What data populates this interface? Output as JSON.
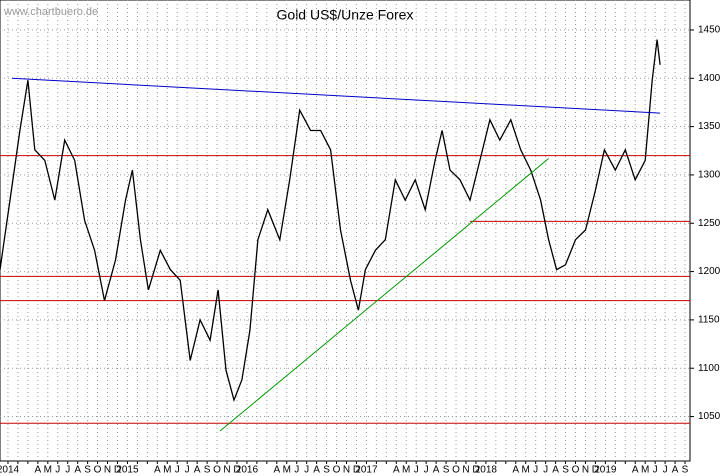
{
  "chart_data": {
    "type": "line",
    "title": "Gold US$/Unze Forex",
    "watermark": "www.chartbuero.de",
    "xlim": [
      -0.8,
      68.5
    ],
    "ylim": [
      1004,
      1481
    ],
    "yticks": [
      1050,
      1100,
      1150,
      1200,
      1250,
      1300,
      1350,
      1400,
      1450
    ],
    "xticks": [
      {
        "value": 0,
        "label": "2014"
      },
      {
        "value": 1,
        "label": null
      },
      {
        "value": 2,
        "label": null
      },
      {
        "value": 3,
        "label": "A"
      },
      {
        "value": 4,
        "label": "M"
      },
      {
        "value": 5,
        "label": "J"
      },
      {
        "value": 6,
        "label": "J"
      },
      {
        "value": 7,
        "label": "A"
      },
      {
        "value": 8,
        "label": "S"
      },
      {
        "value": 9,
        "label": "O"
      },
      {
        "value": 10,
        "label": "N"
      },
      {
        "value": 11,
        "label": "D"
      },
      {
        "value": 12,
        "label": "2015"
      },
      {
        "value": 13,
        "label": null
      },
      {
        "value": 14,
        "label": null
      },
      {
        "value": 15,
        "label": "A"
      },
      {
        "value": 16,
        "label": "M"
      },
      {
        "value": 17,
        "label": "J"
      },
      {
        "value": 18,
        "label": "J"
      },
      {
        "value": 19,
        "label": "A"
      },
      {
        "value": 20,
        "label": "S"
      },
      {
        "value": 21,
        "label": "O"
      },
      {
        "value": 22,
        "label": "N"
      },
      {
        "value": 23,
        "label": "D"
      },
      {
        "value": 24,
        "label": "2016"
      },
      {
        "value": 25,
        "label": null
      },
      {
        "value": 26,
        "label": null
      },
      {
        "value": 27,
        "label": "A"
      },
      {
        "value": 28,
        "label": "M"
      },
      {
        "value": 29,
        "label": "J"
      },
      {
        "value": 30,
        "label": "J"
      },
      {
        "value": 31,
        "label": "A"
      },
      {
        "value": 32,
        "label": "S"
      },
      {
        "value": 33,
        "label": "O"
      },
      {
        "value": 34,
        "label": "N"
      },
      {
        "value": 35,
        "label": "D"
      },
      {
        "value": 36,
        "label": "2017"
      },
      {
        "value": 37,
        "label": null
      },
      {
        "value": 38,
        "label": null
      },
      {
        "value": 39,
        "label": "A"
      },
      {
        "value": 40,
        "label": "M"
      },
      {
        "value": 41,
        "label": "J"
      },
      {
        "value": 42,
        "label": "J"
      },
      {
        "value": 43,
        "label": "A"
      },
      {
        "value": 44,
        "label": "S"
      },
      {
        "value": 45,
        "label": "O"
      },
      {
        "value": 46,
        "label": "N"
      },
      {
        "value": 47,
        "label": "D"
      },
      {
        "value": 48,
        "label": "2018"
      },
      {
        "value": 49,
        "label": null
      },
      {
        "value": 50,
        "label": null
      },
      {
        "value": 51,
        "label": "A"
      },
      {
        "value": 52,
        "label": "M"
      },
      {
        "value": 53,
        "label": "J"
      },
      {
        "value": 54,
        "label": "J"
      },
      {
        "value": 55,
        "label": "A"
      },
      {
        "value": 56,
        "label": "S"
      },
      {
        "value": 57,
        "label": "O"
      },
      {
        "value": 58,
        "label": "N"
      },
      {
        "value": 59,
        "label": "D"
      },
      {
        "value": 60,
        "label": "2019"
      },
      {
        "value": 61,
        "label": null
      },
      {
        "value": 62,
        "label": null
      },
      {
        "value": 63,
        "label": "A"
      },
      {
        "value": 64,
        "label": "M"
      },
      {
        "value": 65,
        "label": "J"
      },
      {
        "value": 66,
        "label": "J"
      },
      {
        "value": 67,
        "label": "A"
      },
      {
        "value": 68,
        "label": "S"
      }
    ],
    "x": [
      -0.8,
      0.2,
      1.2,
      2.0,
      2.7,
      3.7,
      4.7,
      5.7,
      6.7,
      7.7,
      8.7,
      9.7,
      10.8,
      11.8,
      12.5,
      13.3,
      14.1,
      15.3,
      16.3,
      17.3,
      18.3,
      19.3,
      20.3,
      21.1,
      21.9,
      22.7,
      23.5,
      24.3,
      25.1,
      26.1,
      27.3,
      28.3,
      29.3,
      30.4,
      31.4,
      32.4,
      33.4,
      34.4,
      35.2,
      35.9,
      36.9,
      37.9,
      38.9,
      39.9,
      40.9,
      41.9,
      42.9,
      43.6,
      44.4,
      45.4,
      46.4,
      47.4,
      48.4,
      49.4,
      50.5,
      51.5,
      52.5,
      53.5,
      54.3,
      55.1,
      56.0,
      57.0,
      58.0,
      59.0,
      59.9,
      61.0,
      62.0,
      63.0,
      64.0,
      64.7,
      65.2,
      65.5
    ],
    "series": [
      {
        "color": "#000000",
        "values": [
          1202,
          1274,
          1346,
          1398,
          1326,
          1315,
          1274,
          1336,
          1315,
          1253,
          1222,
          1170,
          1212,
          1274,
          1305,
          1233,
          1181,
          1222,
          1202,
          1191,
          1108,
          1150,
          1129,
          1181,
          1098,
          1067,
          1088,
          1139,
          1233,
          1264,
          1233,
          1295,
          1367,
          1346,
          1346,
          1326,
          1243,
          1191,
          1160,
          1202,
          1222,
          1233,
          1295,
          1274,
          1295,
          1264,
          1315,
          1346,
          1305,
          1295,
          1274,
          1315,
          1357,
          1336,
          1357,
          1326,
          1305,
          1274,
          1233,
          1202,
          1207,
          1233,
          1243,
          1284,
          1326,
          1305,
          1326,
          1295,
          1315,
          1398,
          1440,
          1414
        ]
      }
    ],
    "trendlines": [
      {
        "color": "#0000cc",
        "x": [
          0.4,
          65.5
        ],
        "values": [
          1400,
          1364
        ]
      },
      {
        "color": "#009900",
        "x": [
          21.3,
          54.3
        ],
        "values": [
          1035,
          1317
        ]
      }
    ],
    "hlines": [
      {
        "color": "#cc0000",
        "value": 1320
      },
      {
        "color": "#cc0000",
        "value": 1252,
        "x_start": 46.4
      },
      {
        "color": "#cc0000",
        "value": 1195
      },
      {
        "color": "#cc0000",
        "value": 1170
      },
      {
        "color": "#cc0000",
        "value": 1043
      }
    ],
    "grid": true
  }
}
